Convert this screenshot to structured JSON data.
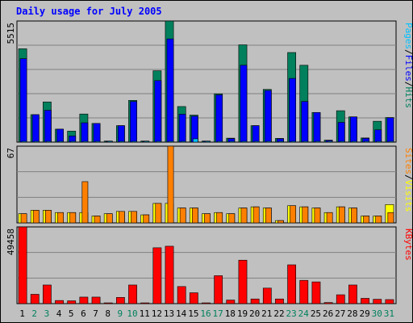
{
  "chart_data": {
    "type": "bar",
    "title": "Daily usage for July 2005",
    "categories": [
      "1",
      "2",
      "3",
      "4",
      "5",
      "6",
      "7",
      "8",
      "9",
      "10",
      "11",
      "12",
      "13",
      "14",
      "15",
      "16",
      "17",
      "18",
      "19",
      "20",
      "21",
      "22",
      "23",
      "24",
      "25",
      "26",
      "27",
      "28",
      "29",
      "30",
      "31"
    ],
    "weekend_days": [
      "2",
      "3",
      "9",
      "10",
      "16",
      "17",
      "23",
      "24",
      "30",
      "31"
    ],
    "panels": [
      {
        "id": "hits",
        "ymax_label": "5515",
        "ymax": 5515,
        "legend": [
          "Pages",
          "Files",
          "Hits"
        ],
        "series": [
          {
            "name": "Hits",
            "values": [
              4250,
              1250,
              1830,
              590,
              500,
              1280,
              850,
              50,
              750,
              1900,
              50,
              3250,
              5515,
              1620,
              1230,
              50,
              2200,
              180,
              4430,
              750,
              2400,
              170,
              4080,
              3500,
              1350,
              90,
              1430,
              1150,
              190,
              950,
              1120
            ]
          },
          {
            "name": "Files",
            "values": [
              3800,
              1250,
              1450,
              590,
              280,
              880,
              850,
              30,
              750,
              1850,
              30,
              2800,
              4700,
              1270,
              1180,
              40,
              2150,
              160,
              3500,
              750,
              2350,
              150,
              2900,
              1850,
              1350,
              80,
              900,
              1150,
              170,
              560,
              1110
            ]
          },
          {
            "name": "Pages",
            "values": [
              20,
              20,
              20,
              20,
              20,
              20,
              20,
              10,
              20,
              20,
              10,
              20,
              20,
              20,
              150,
              10,
              20,
              20,
              20,
              20,
              20,
              20,
              20,
              20,
              20,
              10,
              20,
              20,
              20,
              20,
              20
            ]
          }
        ]
      },
      {
        "id": "visits",
        "ymax_label": "67",
        "ymax": 67,
        "legend": [
          "Sites",
          "Visits"
        ],
        "series": [
          {
            "name": "Visits",
            "values": [
              8,
              11,
              11,
              9,
              9,
              9,
              6,
              8,
              10,
              10,
              7,
              17,
              17,
              13,
              13,
              8,
              9,
              8,
              13,
              14,
              13,
              2,
              15,
              14,
              13,
              9,
              14,
              13,
              6,
              6,
              16
            ]
          },
          {
            "name": "Sites",
            "values": [
              8,
              11,
              11,
              9,
              9,
              36,
              6,
              8,
              10,
              10,
              7,
              17,
              67,
              13,
              13,
              8,
              9,
              8,
              13,
              14,
              13,
              2,
              15,
              14,
              13,
              9,
              14,
              13,
              6,
              6,
              9
            ]
          }
        ]
      },
      {
        "id": "kbytes",
        "ymax_label": "49458",
        "ymax": 49458,
        "legend": [
          "KBytes"
        ],
        "series": [
          {
            "name": "KBytes",
            "values": [
              49458,
              6000,
              12000,
              2000,
              1800,
              4200,
              4200,
              500,
              4000,
              12000,
              500,
              36000,
              37000,
              11000,
              7000,
              500,
              18000,
              2300,
              28000,
              3000,
              10000,
              3000,
              25000,
              15000,
              14000,
              700,
              5700,
              12000,
              3400,
              2800,
              2600
            ]
          }
        ]
      }
    ],
    "colors": {
      "background": "#c0c0c0",
      "plot_bg": "#c0c0c0",
      "title": "#0000ff",
      "hits": "#00805c",
      "files": "#0000ff",
      "pages": "#00c0ff",
      "visits": "#ffff00",
      "sites": "#ff8000",
      "kbytes": "#ff0000",
      "weekday_label": "#000000",
      "weekend_label": "#00805c",
      "grid": "#808080"
    }
  }
}
